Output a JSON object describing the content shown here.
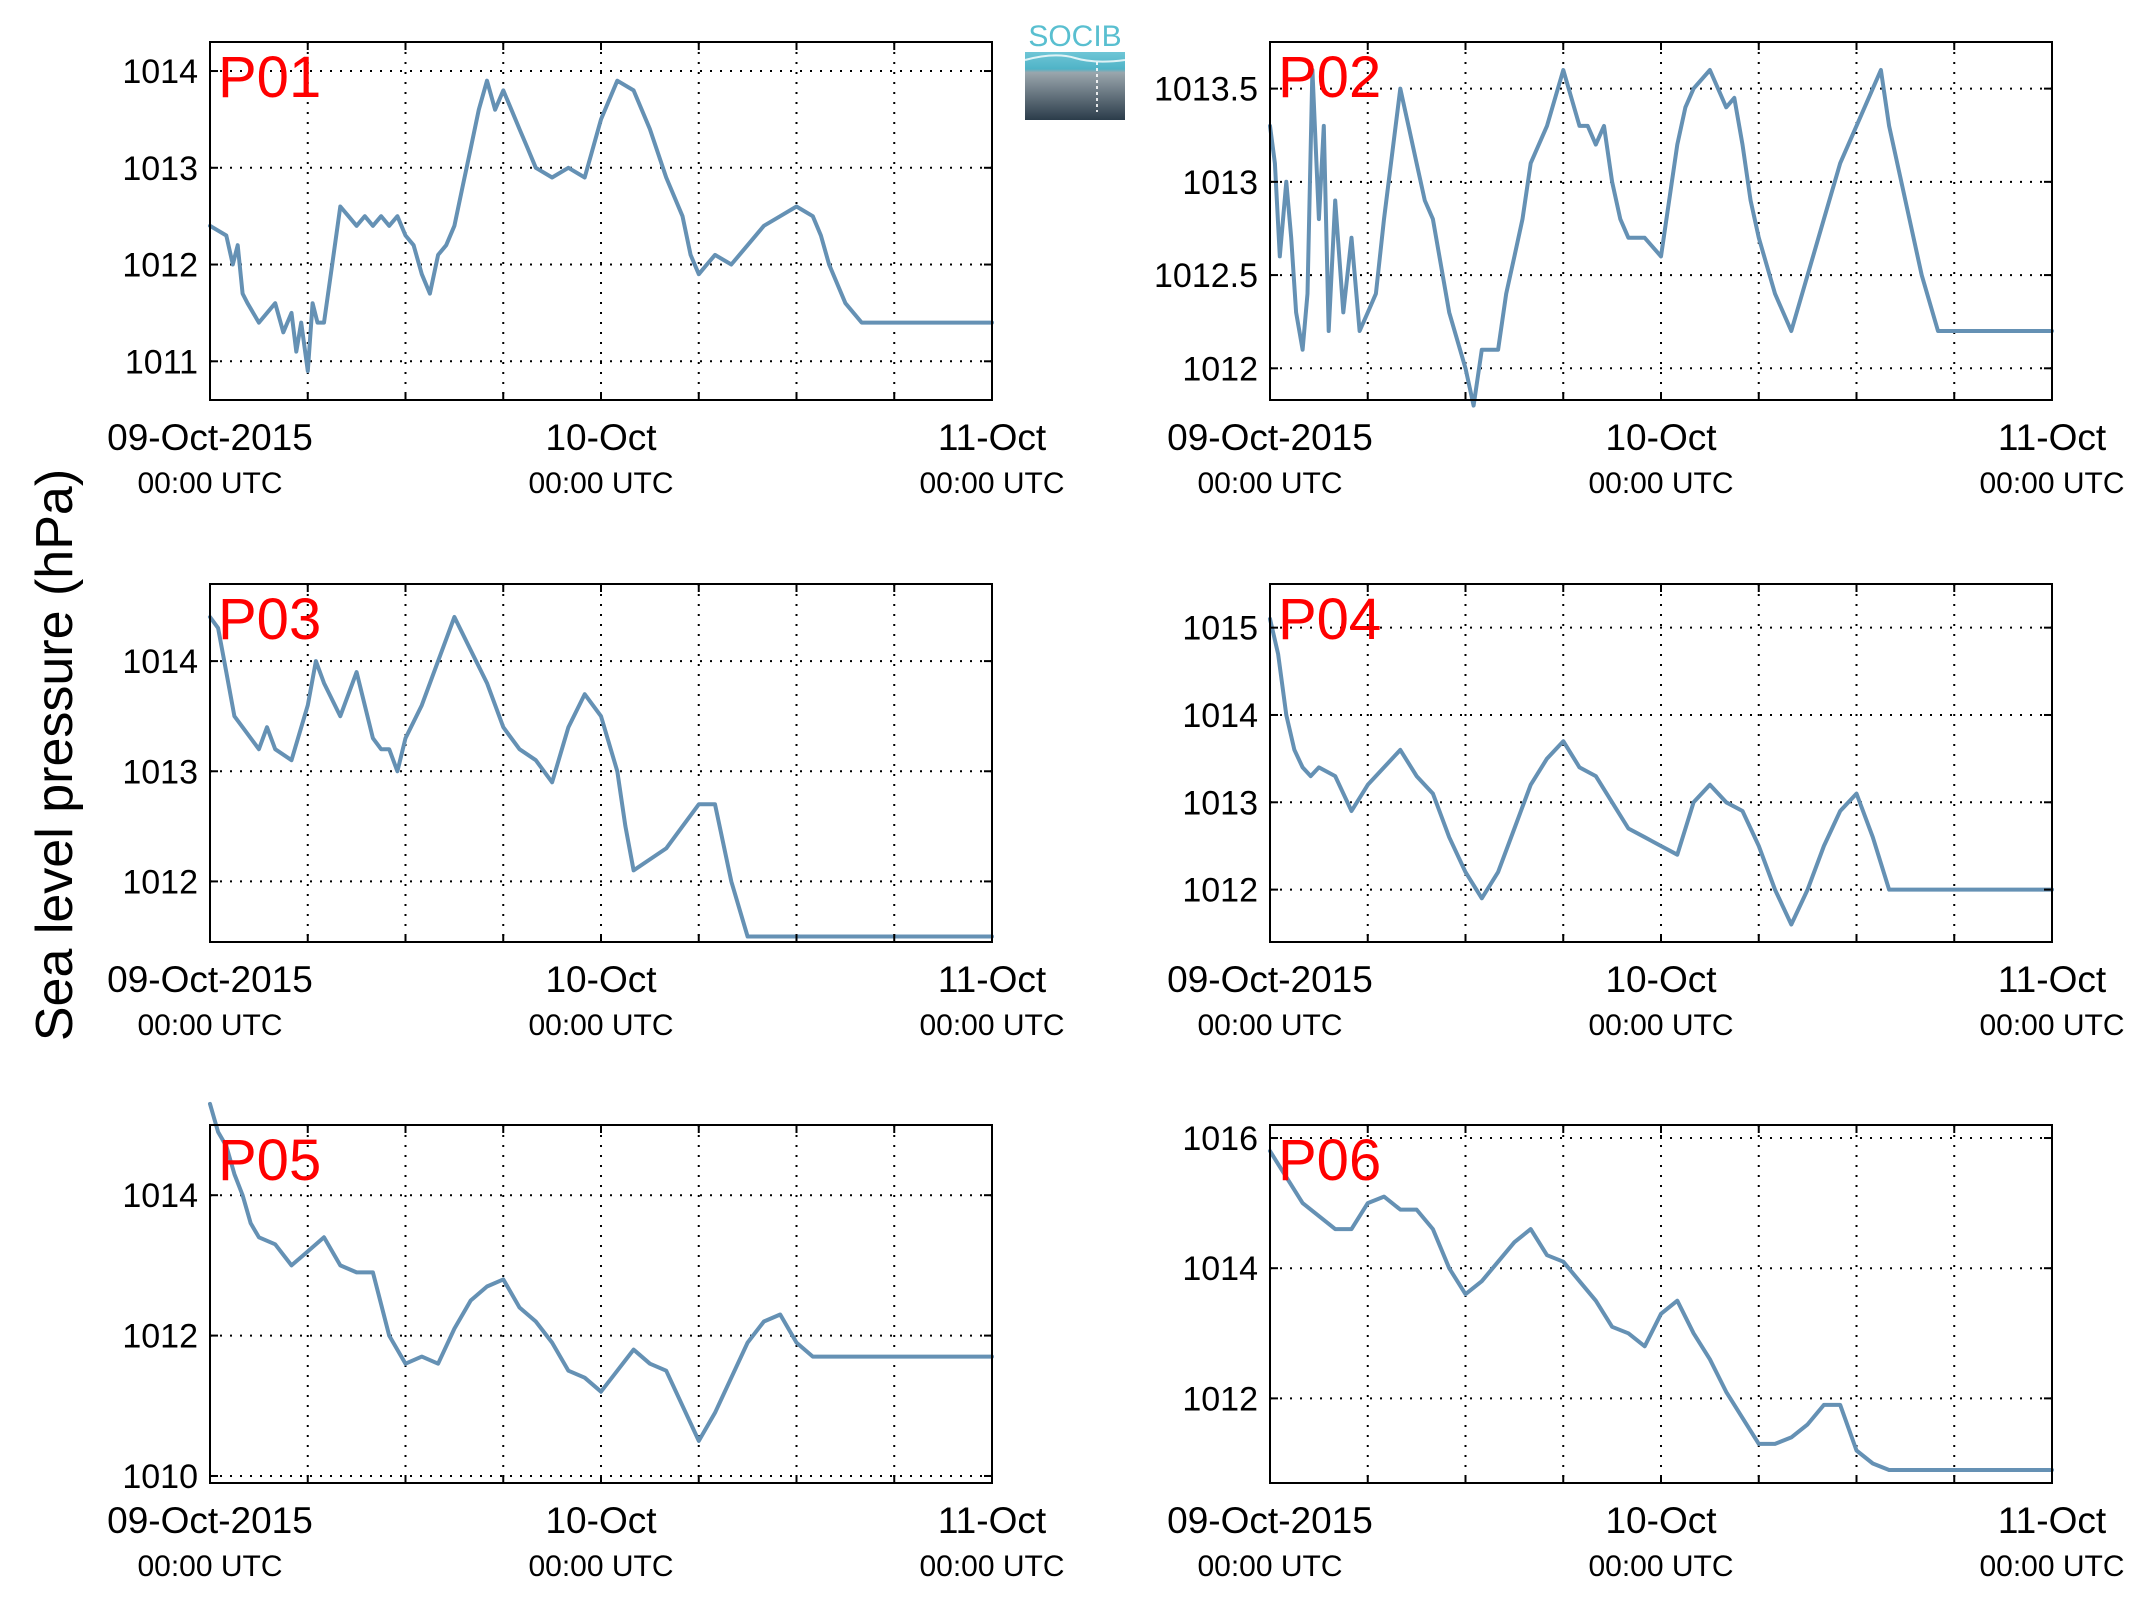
{
  "ylabel": "Sea level pressure (hPa)",
  "logo": {
    "text": "SOCIB"
  },
  "colors": {
    "line": "#6591b4",
    "station_label": "#ff0000",
    "axes": "#000000",
    "grid": "#000000",
    "logo_top": "#59bfd0",
    "logo_bottom": "#2d3f4e"
  },
  "x_ticks": [
    {
      "main": "09-Oct-2015",
      "sub": "00:00 UTC"
    },
    {
      "main": "10-Oct",
      "sub": "00:00 UTC"
    },
    {
      "main": "11-Oct",
      "sub": "00:00 UTC"
    }
  ],
  "chart_data": [
    {
      "type": "line",
      "title": "P01",
      "x_unit": "hours since 09-Oct-2015 00:00 UTC",
      "xlim": [
        0,
        48
      ],
      "ylim": [
        1010.6,
        1014.3
      ],
      "yticks": [
        1011,
        1012,
        1013,
        1014
      ],
      "grid": true,
      "x": [
        0,
        1,
        1.4,
        1.7,
        2,
        2.3,
        3,
        4,
        4.5,
        5,
        5.3,
        5.6,
        6,
        6.3,
        6.6,
        7,
        7.5,
        8,
        8.5,
        9,
        9.5,
        10,
        10.5,
        11,
        11.5,
        12,
        12.5,
        13,
        13.5,
        14,
        14.5,
        15,
        15.5,
        16,
        16.5,
        17,
        17.5,
        18,
        18.5,
        19,
        19.5,
        20,
        21,
        22,
        23,
        24,
        25,
        26,
        27,
        28,
        29,
        29.5,
        30,
        30.5,
        31,
        32,
        33,
        34,
        35,
        36,
        37,
        37.5,
        38,
        39,
        40,
        41,
        42,
        43,
        44,
        45,
        46,
        47,
        48
      ],
      "y": [
        1012.4,
        1012.3,
        1012.0,
        1012.2,
        1011.7,
        1011.6,
        1011.4,
        1011.6,
        1011.3,
        1011.5,
        1011.1,
        1011.4,
        1010.9,
        1011.6,
        1011.4,
        1011.4,
        1012.0,
        1012.6,
        1012.5,
        1012.4,
        1012.5,
        1012.4,
        1012.5,
        1012.4,
        1012.5,
        1012.3,
        1012.2,
        1011.9,
        1011.7,
        1012.1,
        1012.2,
        1012.4,
        1012.8,
        1013.2,
        1013.6,
        1013.9,
        1013.6,
        1013.8,
        1013.6,
        1013.4,
        1013.2,
        1013.0,
        1012.9,
        1013.0,
        1012.9,
        1013.5,
        1013.9,
        1013.8,
        1013.4,
        1012.9,
        1012.5,
        1012.1,
        1011.9,
        1012.0,
        1012.1,
        1012.0,
        1012.2,
        1012.4,
        1012.5,
        1012.6,
        1012.5,
        1012.3,
        1012.0,
        1011.6,
        1011.4,
        1011.4,
        1011.4,
        1011.4,
        1011.4,
        1011.4,
        1011.4,
        1011.4,
        1011.4
      ]
    },
    {
      "type": "line",
      "title": "P02",
      "x_unit": "hours since 09-Oct-2015 00:00 UTC",
      "xlim": [
        0,
        48
      ],
      "ylim": [
        1011.83,
        1013.75
      ],
      "yticks": [
        1012,
        1012.5,
        1013,
        1013.5
      ],
      "grid": true,
      "x": [
        0,
        0.3,
        0.6,
        1,
        1.3,
        1.6,
        2,
        2.3,
        2.6,
        3,
        3.3,
        3.6,
        4,
        4.5,
        5,
        5.5,
        6,
        6.5,
        7,
        8,
        8.5,
        9,
        9.5,
        10,
        11,
        12,
        12.5,
        13,
        14,
        14.5,
        15,
        15.5,
        16,
        17,
        18,
        19,
        19.5,
        20,
        20.5,
        21,
        21.5,
        22,
        23,
        24,
        25,
        25.5,
        26,
        27,
        28,
        28.5,
        29,
        29.5,
        30,
        31,
        32,
        33,
        34,
        35,
        36,
        37,
        37.5,
        38,
        39,
        40,
        41,
        42,
        43,
        44,
        44.5,
        45,
        46,
        47,
        48
      ],
      "y": [
        1013.3,
        1013.1,
        1012.6,
        1013.0,
        1012.7,
        1012.3,
        1012.1,
        1012.4,
        1013.6,
        1012.8,
        1013.3,
        1012.2,
        1012.9,
        1012.3,
        1012.7,
        1012.2,
        1012.3,
        1012.4,
        1012.8,
        1013.5,
        1013.3,
        1013.1,
        1012.9,
        1012.8,
        1012.3,
        1012.0,
        1011.8,
        1012.1,
        1012.1,
        1012.4,
        1012.6,
        1012.8,
        1013.1,
        1013.3,
        1013.6,
        1013.3,
        1013.3,
        1013.2,
        1013.3,
        1013.0,
        1012.8,
        1012.7,
        1012.7,
        1012.6,
        1013.2,
        1013.4,
        1013.5,
        1013.6,
        1013.4,
        1013.45,
        1013.2,
        1012.9,
        1012.7,
        1012.4,
        1012.2,
        1012.5,
        1012.8,
        1013.1,
        1013.3,
        1013.5,
        1013.6,
        1013.3,
        1012.9,
        1012.5,
        1012.2,
        1012.2,
        1012.2,
        1012.2,
        1012.2,
        1012.2,
        1012.2,
        1012.2,
        1012.2
      ]
    },
    {
      "type": "line",
      "title": "P03",
      "x_unit": "hours since 09-Oct-2015 00:00 UTC",
      "xlim": [
        0,
        48
      ],
      "ylim": [
        1011.45,
        1014.7
      ],
      "yticks": [
        1012,
        1013,
        1014
      ],
      "grid": true,
      "x": [
        0,
        0.5,
        1,
        1.5,
        2,
        3,
        3.5,
        4,
        5,
        6,
        6.5,
        7,
        8,
        9,
        10,
        10.5,
        11,
        11.5,
        12,
        13,
        14,
        15,
        16,
        17,
        18,
        19,
        20,
        21,
        22,
        23,
        24,
        25,
        25.5,
        26,
        27,
        28,
        29,
        30,
        31,
        32,
        33,
        34,
        35,
        36,
        37,
        37.5,
        38,
        39,
        40,
        41,
        42,
        43,
        44,
        45,
        46,
        47,
        48
      ],
      "y": [
        1014.4,
        1014.3,
        1013.9,
        1013.5,
        1013.4,
        1013.2,
        1013.4,
        1013.2,
        1013.1,
        1013.6,
        1014.0,
        1013.8,
        1013.5,
        1013.9,
        1013.3,
        1013.2,
        1013.2,
        1013.0,
        1013.3,
        1013.6,
        1014.0,
        1014.4,
        1014.1,
        1013.8,
        1013.4,
        1013.2,
        1013.1,
        1012.9,
        1013.4,
        1013.7,
        1013.5,
        1013.0,
        1012.5,
        1012.1,
        1012.2,
        1012.3,
        1012.5,
        1012.7,
        1012.7,
        1012.0,
        1011.5,
        1011.5,
        1011.5,
        1011.5,
        1011.5,
        1011.5,
        1011.5,
        1011.5,
        1011.5,
        1011.5,
        1011.5,
        1011.5,
        1011.5,
        1011.5,
        1011.5,
        1011.5,
        1011.5
      ],
      "note_ignore": ""
    },
    {
      "type": "line",
      "title": "P04",
      "x_unit": "hours since 09-Oct-2015 00:00 UTC",
      "xlim": [
        0,
        48
      ],
      "ylim": [
        1011.4,
        1015.5
      ],
      "yticks": [
        1012,
        1013,
        1014,
        1015
      ],
      "grid": true,
      "x": [
        0,
        0.5,
        1,
        1.5,
        2,
        2.5,
        3,
        4,
        5,
        6,
        7,
        8,
        9,
        10,
        11,
        12,
        13,
        14,
        15,
        16,
        17,
        18,
        19,
        20,
        21,
        22,
        23,
        24,
        25,
        26,
        27,
        28,
        29,
        30,
        31,
        32,
        33,
        34,
        35,
        36,
        37,
        38,
        39,
        40,
        41,
        42,
        43,
        44,
        45,
        46,
        47,
        48
      ],
      "y": [
        1015.1,
        1014.7,
        1014.0,
        1013.6,
        1013.4,
        1013.3,
        1013.4,
        1013.3,
        1012.9,
        1013.2,
        1013.4,
        1013.6,
        1013.3,
        1013.1,
        1012.6,
        1012.2,
        1011.9,
        1012.2,
        1012.7,
        1013.2,
        1013.5,
        1013.7,
        1013.4,
        1013.3,
        1013.0,
        1012.7,
        1012.6,
        1012.5,
        1012.4,
        1013.0,
        1013.2,
        1013.0,
        1012.9,
        1012.5,
        1012.0,
        1011.6,
        1012.0,
        1012.5,
        1012.9,
        1013.1,
        1012.6,
        1012.0,
        1012.0,
        1012.0,
        1012.0,
        1012.0,
        1012.0,
        1012.0,
        1012.0,
        1012.0,
        1012.0,
        1012.0
      ]
    },
    {
      "type": "line",
      "title": "P05",
      "x_unit": "hours since 09-Oct-2015 00:00 UTC",
      "xlim": [
        0,
        48
      ],
      "ylim": [
        1009.9,
        1015.0
      ],
      "yticks": [
        1010,
        1012,
        1014
      ],
      "grid": true,
      "x": [
        0,
        0.5,
        1,
        1.5,
        2,
        2.5,
        3,
        4,
        5,
        6,
        7,
        8,
        9,
        10,
        11,
        12,
        13,
        14,
        15,
        16,
        17,
        18,
        19,
        20,
        21,
        22,
        23,
        24,
        25,
        26,
        27,
        28,
        29,
        30,
        31,
        32,
        33,
        34,
        35,
        36,
        37,
        38,
        39,
        40,
        41,
        42,
        43,
        44,
        45,
        46,
        47,
        48
      ],
      "y": [
        1015.3,
        1014.9,
        1014.7,
        1014.3,
        1014.0,
        1013.6,
        1013.4,
        1013.3,
        1013.0,
        1013.2,
        1013.4,
        1013.0,
        1012.9,
        1012.9,
        1012.0,
        1011.6,
        1011.7,
        1011.6,
        1012.1,
        1012.5,
        1012.7,
        1012.8,
        1012.4,
        1012.2,
        1011.9,
        1011.5,
        1011.4,
        1011.2,
        1011.5,
        1011.8,
        1011.6,
        1011.5,
        1011.0,
        1010.5,
        1010.9,
        1011.4,
        1011.9,
        1012.2,
        1012.3,
        1011.9,
        1011.7,
        1011.7,
        1011.7,
        1011.7,
        1011.7,
        1011.7,
        1011.7,
        1011.7,
        1011.7,
        1011.7,
        1011.7,
        1011.7
      ]
    },
    {
      "type": "line",
      "title": "P06",
      "x_unit": "hours since 09-Oct-2015 00:00 UTC",
      "xlim": [
        0,
        48
      ],
      "ylim": [
        1010.7,
        1016.2
      ],
      "yticks": [
        1012,
        1014,
        1016
      ],
      "grid": true,
      "x": [
        0,
        0.5,
        1,
        2,
        3,
        4,
        5,
        6,
        7,
        8,
        9,
        10,
        11,
        12,
        13,
        14,
        15,
        16,
        17,
        18,
        19,
        20,
        21,
        22,
        23,
        24,
        25,
        26,
        27,
        28,
        29,
        30,
        31,
        32,
        33,
        34,
        35,
        36,
        37,
        38,
        39,
        40,
        41,
        42,
        43,
        44,
        45,
        46,
        47,
        48
      ],
      "y": [
        1015.8,
        1015.6,
        1015.4,
        1015.0,
        1014.8,
        1014.6,
        1014.6,
        1015.0,
        1015.1,
        1014.9,
        1014.9,
        1014.6,
        1014.0,
        1013.6,
        1013.8,
        1014.1,
        1014.4,
        1014.6,
        1014.2,
        1014.1,
        1013.8,
        1013.5,
        1013.1,
        1013.0,
        1012.8,
        1013.3,
        1013.5,
        1013.0,
        1012.6,
        1012.1,
        1011.7,
        1011.3,
        1011.3,
        1011.4,
        1011.6,
        1011.9,
        1011.9,
        1011.2,
        1011.0,
        1010.9,
        1010.9,
        1010.9,
        1010.9,
        1010.9,
        1010.9,
        1010.9,
        1010.9,
        1010.9,
        1010.9,
        1010.9
      ]
    }
  ]
}
